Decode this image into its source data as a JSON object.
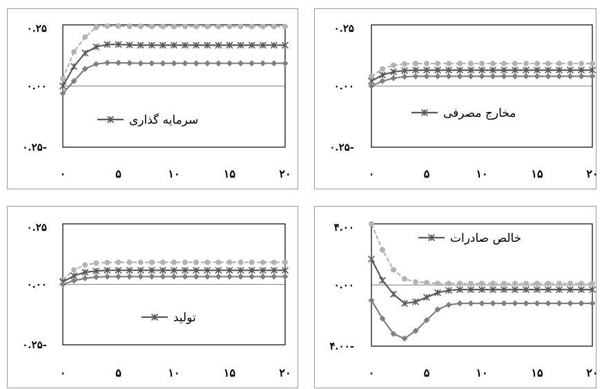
{
  "chart_data": [
    {
      "type": "line",
      "legend": "سرمایه گذاری",
      "y_ticks": [
        "۰.۲۵",
        "۰.۰۰",
        "۰.۲۵-"
      ],
      "x_ticks": [
        "۰",
        "۵",
        "۱۰",
        "۱۵",
        "۲۰"
      ],
      "ylim": [
        -0.25,
        0.25
      ],
      "xlim": [
        0,
        20
      ],
      "x": [
        0,
        1,
        2,
        3,
        4,
        5,
        6,
        7,
        8,
        9,
        10,
        11,
        12,
        13,
        14,
        15,
        16,
        17,
        18,
        19,
        20
      ],
      "series": [
        {
          "role": "upper",
          "color": "#b3b3b3",
          "marker": "circle",
          "dashed": true,
          "values": [
            0.03,
            0.14,
            0.2,
            0.24,
            0.245,
            0.245,
            0.244,
            0.244,
            0.243,
            0.243,
            0.243,
            0.243,
            0.243,
            0.243,
            0.243,
            0.243,
            0.243,
            0.243,
            0.243,
            0.243,
            0.243
          ]
        },
        {
          "role": "mid",
          "color": "#595959",
          "marker": "star",
          "dashed": false,
          "values": [
            0.0,
            0.08,
            0.135,
            0.16,
            0.17,
            0.17,
            0.168,
            0.167,
            0.167,
            0.167,
            0.167,
            0.167,
            0.167,
            0.167,
            0.167,
            0.167,
            0.167,
            0.167,
            0.167,
            0.167,
            0.167
          ]
        },
        {
          "role": "lower",
          "color": "#7f7f7f",
          "marker": "diamond",
          "dashed": false,
          "values": [
            -0.03,
            0.02,
            0.07,
            0.09,
            0.095,
            0.095,
            0.094,
            0.093,
            0.093,
            0.093,
            0.093,
            0.093,
            0.093,
            0.093,
            0.093,
            0.093,
            0.093,
            0.093,
            0.093,
            0.093,
            0.093
          ]
        }
      ]
    },
    {
      "type": "line",
      "legend": "مخارج مصرفی",
      "y_ticks": [
        "۰.۲۵",
        "۰.۰۰",
        "۰.۲۵-"
      ],
      "x_ticks": [
        "۰",
        "۵",
        "۱۰",
        "۱۵",
        "۲۰"
      ],
      "ylim": [
        -0.25,
        0.25
      ],
      "xlim": [
        0,
        20
      ],
      "x": [
        0,
        1,
        2,
        3,
        4,
        5,
        6,
        7,
        8,
        9,
        10,
        11,
        12,
        13,
        14,
        15,
        16,
        17,
        18,
        19,
        20
      ],
      "series": [
        {
          "role": "upper",
          "color": "#b3b3b3",
          "marker": "circle",
          "dashed": true,
          "values": [
            0.04,
            0.07,
            0.085,
            0.09,
            0.092,
            0.092,
            0.092,
            0.092,
            0.092,
            0.092,
            0.092,
            0.092,
            0.092,
            0.092,
            0.092,
            0.092,
            0.092,
            0.092,
            0.092,
            0.092,
            0.092
          ]
        },
        {
          "role": "mid",
          "color": "#595959",
          "marker": "star",
          "dashed": false,
          "values": [
            0.02,
            0.045,
            0.058,
            0.063,
            0.065,
            0.065,
            0.065,
            0.065,
            0.065,
            0.065,
            0.065,
            0.065,
            0.065,
            0.065,
            0.065,
            0.065,
            0.065,
            0.065,
            0.065,
            0.065,
            0.065
          ]
        },
        {
          "role": "lower",
          "color": "#7f7f7f",
          "marker": "diamond",
          "dashed": false,
          "values": [
            0.0,
            0.02,
            0.032,
            0.038,
            0.04,
            0.04,
            0.04,
            0.04,
            0.04,
            0.04,
            0.04,
            0.04,
            0.04,
            0.04,
            0.04,
            0.04,
            0.04,
            0.04,
            0.04,
            0.04,
            0.04
          ]
        }
      ]
    },
    {
      "type": "line",
      "legend": "تولید",
      "y_ticks": [
        "۰.۲۵",
        "۰.۰۰",
        "۰.۲۵-"
      ],
      "x_ticks": [
        "۰",
        "۵",
        "۱۰",
        "۱۵",
        "۲۰"
      ],
      "ylim": [
        -0.25,
        0.25
      ],
      "xlim": [
        0,
        20
      ],
      "x": [
        0,
        1,
        2,
        3,
        4,
        5,
        6,
        7,
        8,
        9,
        10,
        11,
        12,
        13,
        14,
        15,
        16,
        17,
        18,
        19,
        20
      ],
      "series": [
        {
          "role": "upper",
          "color": "#b3b3b3",
          "marker": "circle",
          "dashed": true,
          "values": [
            0.02,
            0.06,
            0.08,
            0.088,
            0.09,
            0.091,
            0.091,
            0.091,
            0.091,
            0.091,
            0.091,
            0.091,
            0.091,
            0.091,
            0.091,
            0.091,
            0.091,
            0.091,
            0.091,
            0.091,
            0.091
          ]
        },
        {
          "role": "mid",
          "color": "#595959",
          "marker": "star",
          "dashed": false,
          "values": [
            0.01,
            0.035,
            0.05,
            0.055,
            0.058,
            0.058,
            0.058,
            0.058,
            0.058,
            0.058,
            0.058,
            0.058,
            0.058,
            0.058,
            0.058,
            0.058,
            0.058,
            0.058,
            0.058,
            0.058,
            0.058
          ]
        },
        {
          "role": "lower",
          "color": "#7f7f7f",
          "marker": "diamond",
          "dashed": false,
          "values": [
            0.0,
            0.015,
            0.025,
            0.03,
            0.032,
            0.032,
            0.032,
            0.032,
            0.032,
            0.032,
            0.032,
            0.032,
            0.032,
            0.032,
            0.032,
            0.032,
            0.032,
            0.032,
            0.032,
            0.032,
            0.032
          ]
        }
      ]
    },
    {
      "type": "line",
      "legend": "خالص صادرات",
      "y_ticks": [
        "۴.۰۰",
        "۰.۰۰",
        "۴.۰۰-"
      ],
      "x_ticks": [
        "۰",
        "۵",
        "۱۰",
        "۱۵",
        "۲۰"
      ],
      "ylim": [
        -4,
        4
      ],
      "xlim": [
        0,
        20
      ],
      "x": [
        0,
        1,
        2,
        3,
        4,
        5,
        6,
        7,
        8,
        9,
        10,
        11,
        12,
        13,
        14,
        15,
        16,
        17,
        18,
        19,
        20
      ],
      "series": [
        {
          "role": "upper",
          "color": "#b3b3b3",
          "marker": "circle",
          "dashed": true,
          "values": [
            4.0,
            2.3,
            1.0,
            0.4,
            0.2,
            0.15,
            0.1,
            0.1,
            0.1,
            0.1,
            0.1,
            0.1,
            0.1,
            0.1,
            0.1,
            0.1,
            0.1,
            0.1,
            0.1,
            0.1,
            0.1
          ]
        },
        {
          "role": "mid",
          "color": "#595959",
          "marker": "star",
          "dashed": false,
          "values": [
            1.7,
            0.3,
            -0.6,
            -1.2,
            -1.1,
            -0.8,
            -0.5,
            -0.35,
            -0.3,
            -0.3,
            -0.3,
            -0.3,
            -0.3,
            -0.3,
            -0.3,
            -0.3,
            -0.3,
            -0.3,
            -0.3,
            -0.3,
            -0.3
          ]
        },
        {
          "role": "lower",
          "color": "#7f7f7f",
          "marker": "diamond",
          "dashed": false,
          "values": [
            -1.0,
            -2.2,
            -3.2,
            -3.5,
            -3.0,
            -2.3,
            -1.6,
            -1.3,
            -1.2,
            -1.2,
            -1.2,
            -1.2,
            -1.2,
            -1.2,
            -1.2,
            -1.2,
            -1.2,
            -1.2,
            -1.2,
            -1.2,
            -1.2
          ]
        }
      ]
    }
  ]
}
